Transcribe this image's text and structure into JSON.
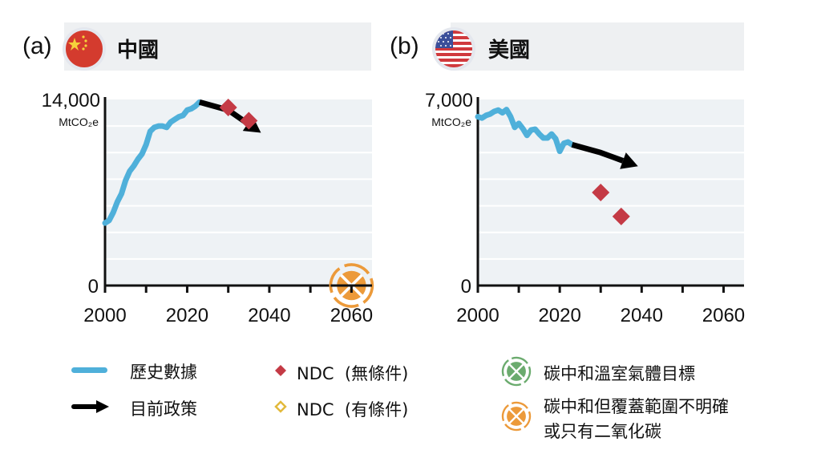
{
  "panels": [
    {
      "label": "(a)",
      "country": "中國",
      "flag": "china-flag"
    },
    {
      "label": "(b)",
      "country": "美國",
      "flag": "usa-flag"
    }
  ],
  "legend": {
    "historical": "歷史數據",
    "current_policy": "目前政策",
    "ndc_unconditional": "NDC  (無條件)",
    "ndc_conditional": "NDC  (有條件)",
    "net_zero_ghg": "碳中和溫室氣體目標",
    "net_zero_unclear_line1": "碳中和但覆蓋範圍不明確",
    "net_zero_unclear_line2": "或只有二氧化碳"
  },
  "colors": {
    "historical": "#4fb0da",
    "policy": "#000000",
    "ndc_unconditional": "#c43a45",
    "ndc_conditional": "#e2b93b",
    "net_zero_ghg": "#6bab6e",
    "net_zero_unclear": "#ec9a3a",
    "plot_bg": "#eef2f5",
    "header_bg": "#eef0f2"
  },
  "chart_data": [
    {
      "type": "line",
      "title": "中國",
      "ylabel": "MtCO2e",
      "ylim": [
        0,
        14000
      ],
      "xlim": [
        2000,
        2065
      ],
      "x_ticks": [
        2000,
        2020,
        2040,
        2060
      ],
      "y_tick_labels": [
        "0",
        "14,000"
      ],
      "y_unit": "MtCO₂e",
      "grid": true,
      "historical": {
        "x": [
          2000,
          2001,
          2002,
          2003,
          2004,
          2005,
          2006,
          2007,
          2008,
          2009,
          2010,
          2011,
          2012,
          2013,
          2014,
          2015,
          2016,
          2017,
          2018,
          2019,
          2020,
          2021,
          2022,
          2023
        ],
        "y": [
          4700,
          4900,
          5500,
          6300,
          6900,
          7900,
          8600,
          9000,
          9500,
          9900,
          10600,
          11600,
          11900,
          12000,
          12000,
          11900,
          12300,
          12500,
          12700,
          12800,
          13200,
          13300,
          13500,
          13800
        ]
      },
      "current_policy": {
        "x": [
          2023,
          2030,
          2037
        ],
        "y": [
          13800,
          13200,
          11700
        ]
      },
      "ndc_unconditional": [
        {
          "x": 2030,
          "y": 13400
        },
        {
          "x": 2035,
          "y": 12400
        }
      ],
      "net_zero_unclear": {
        "x": 2060,
        "y": 0
      }
    },
    {
      "type": "line",
      "title": "美國",
      "ylabel": "MtCO2e",
      "ylim": [
        0,
        7000
      ],
      "xlim": [
        2000,
        2065
      ],
      "x_ticks": [
        2000,
        2020,
        2040,
        2060
      ],
      "y_tick_labels": [
        "0",
        "7,000"
      ],
      "y_unit": "MtCO₂e",
      "grid": true,
      "historical": {
        "x": [
          2000,
          2001,
          2002,
          2003,
          2004,
          2005,
          2006,
          2007,
          2008,
          2009,
          2010,
          2011,
          2012,
          2013,
          2014,
          2015,
          2016,
          2017,
          2018,
          2019,
          2020,
          2021,
          2022,
          2023
        ],
        "y": [
          6350,
          6300,
          6400,
          6450,
          6550,
          6600,
          6500,
          6620,
          6350,
          5950,
          6100,
          5900,
          5650,
          5850,
          5880,
          5700,
          5550,
          5550,
          5700,
          5520,
          5050,
          5350,
          5400,
          5300
        ]
      },
      "current_policy": {
        "x": [
          2023,
          2030,
          2038
        ],
        "y": [
          5300,
          5000,
          4550
        ]
      },
      "ndc_unconditional": [
        {
          "x": 2030,
          "y": 3500
        },
        {
          "x": 2035,
          "y": 2600
        }
      ]
    }
  ]
}
